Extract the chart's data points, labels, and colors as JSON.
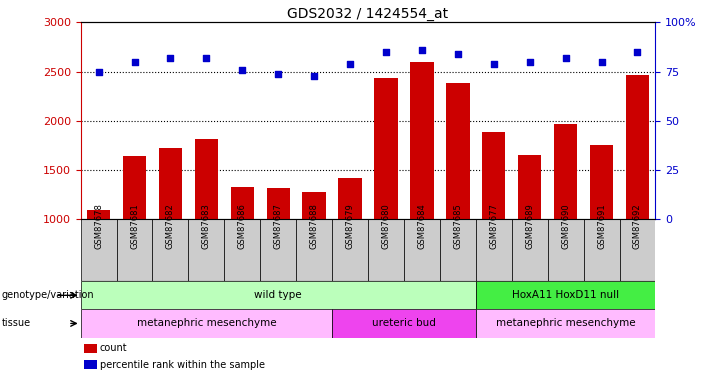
{
  "title": "GDS2032 / 1424554_at",
  "samples": [
    "GSM87678",
    "GSM87681",
    "GSM87682",
    "GSM87683",
    "GSM87686",
    "GSM87687",
    "GSM87688",
    "GSM87679",
    "GSM87680",
    "GSM87684",
    "GSM87685",
    "GSM87677",
    "GSM87689",
    "GSM87690",
    "GSM87691",
    "GSM87692"
  ],
  "counts": [
    1100,
    1640,
    1720,
    1820,
    1330,
    1320,
    1280,
    1420,
    2440,
    2600,
    2390,
    1890,
    1650,
    1970,
    1760,
    2470
  ],
  "percentile": [
    75,
    80,
    82,
    82,
    76,
    74,
    73,
    79,
    85,
    86,
    84,
    79,
    80,
    82,
    80,
    85
  ],
  "bar_color": "#cc0000",
  "dot_color": "#0000cc",
  "ylim_left": [
    1000,
    3000
  ],
  "ylim_right": [
    0,
    100
  ],
  "yticks_left": [
    1000,
    1500,
    2000,
    2500,
    3000
  ],
  "yticks_right": [
    0,
    25,
    50,
    75,
    100
  ],
  "ytick_right_labels": [
    "0",
    "25",
    "50",
    "75",
    "100%"
  ],
  "grid_values": [
    1500,
    2000,
    2500
  ],
  "genotype_groups": [
    {
      "label": "wild type",
      "start": 0,
      "end": 11,
      "color": "#bbffbb"
    },
    {
      "label": "HoxA11 HoxD11 null",
      "start": 11,
      "end": 16,
      "color": "#44ee44"
    }
  ],
  "tissue_groups": [
    {
      "label": "metanephric mesenchyme",
      "start": 0,
      "end": 7,
      "color": "#ffbbff"
    },
    {
      "label": "ureteric bud",
      "start": 7,
      "end": 11,
      "color": "#ee44ee"
    },
    {
      "label": "metanephric mesenchyme",
      "start": 11,
      "end": 16,
      "color": "#ffbbff"
    }
  ],
  "legend_items": [
    {
      "label": "count",
      "color": "#cc0000"
    },
    {
      "label": "percentile rank within the sample",
      "color": "#0000cc"
    }
  ],
  "bg_color": "#ffffff",
  "tick_color_left": "#cc0000",
  "tick_color_right": "#0000cc",
  "xtick_bg": "#cccccc"
}
